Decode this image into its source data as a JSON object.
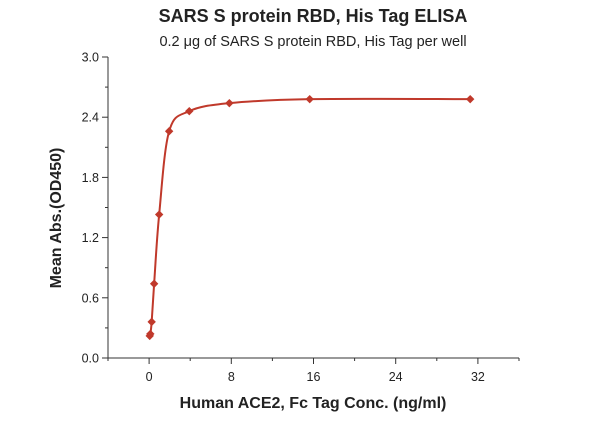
{
  "chart_data": {
    "type": "scatter",
    "title": "SARS S protein RBD, His Tag ELISA",
    "subtitle": "0.2 μg of SARS S protein RBD, His Tag per well",
    "xlabel": "Human ACE2, Fc Tag Conc. (ng/ml)",
    "ylabel": "Mean Abs.(OD450)",
    "xlim": [
      -4,
      36
    ],
    "ylim": [
      0,
      3.0
    ],
    "x_ticks": [
      0,
      8,
      16,
      24,
      32
    ],
    "x_tick_labels": [
      "0",
      "8",
      "16",
      "24",
      "32"
    ],
    "y_ticks": [
      0,
      0.6,
      1.2,
      1.8,
      2.4,
      3.0
    ],
    "y_tick_labels": [
      "0.0",
      "0.6",
      "1.2",
      "1.8",
      "2.4",
      "3.0"
    ],
    "grid": false,
    "series": [
      {
        "x": [
          0.06,
          0.12,
          0.25,
          0.49,
          0.98,
          1.95,
          3.91,
          7.81,
          15.63,
          31.25
        ],
        "y": [
          0.22,
          0.24,
          0.36,
          0.74,
          1.43,
          2.26,
          2.46,
          2.54,
          2.58,
          2.58
        ],
        "marker": "diamond",
        "color": "#c0392b",
        "fit": "four-parameter logistic curve"
      }
    ]
  }
}
